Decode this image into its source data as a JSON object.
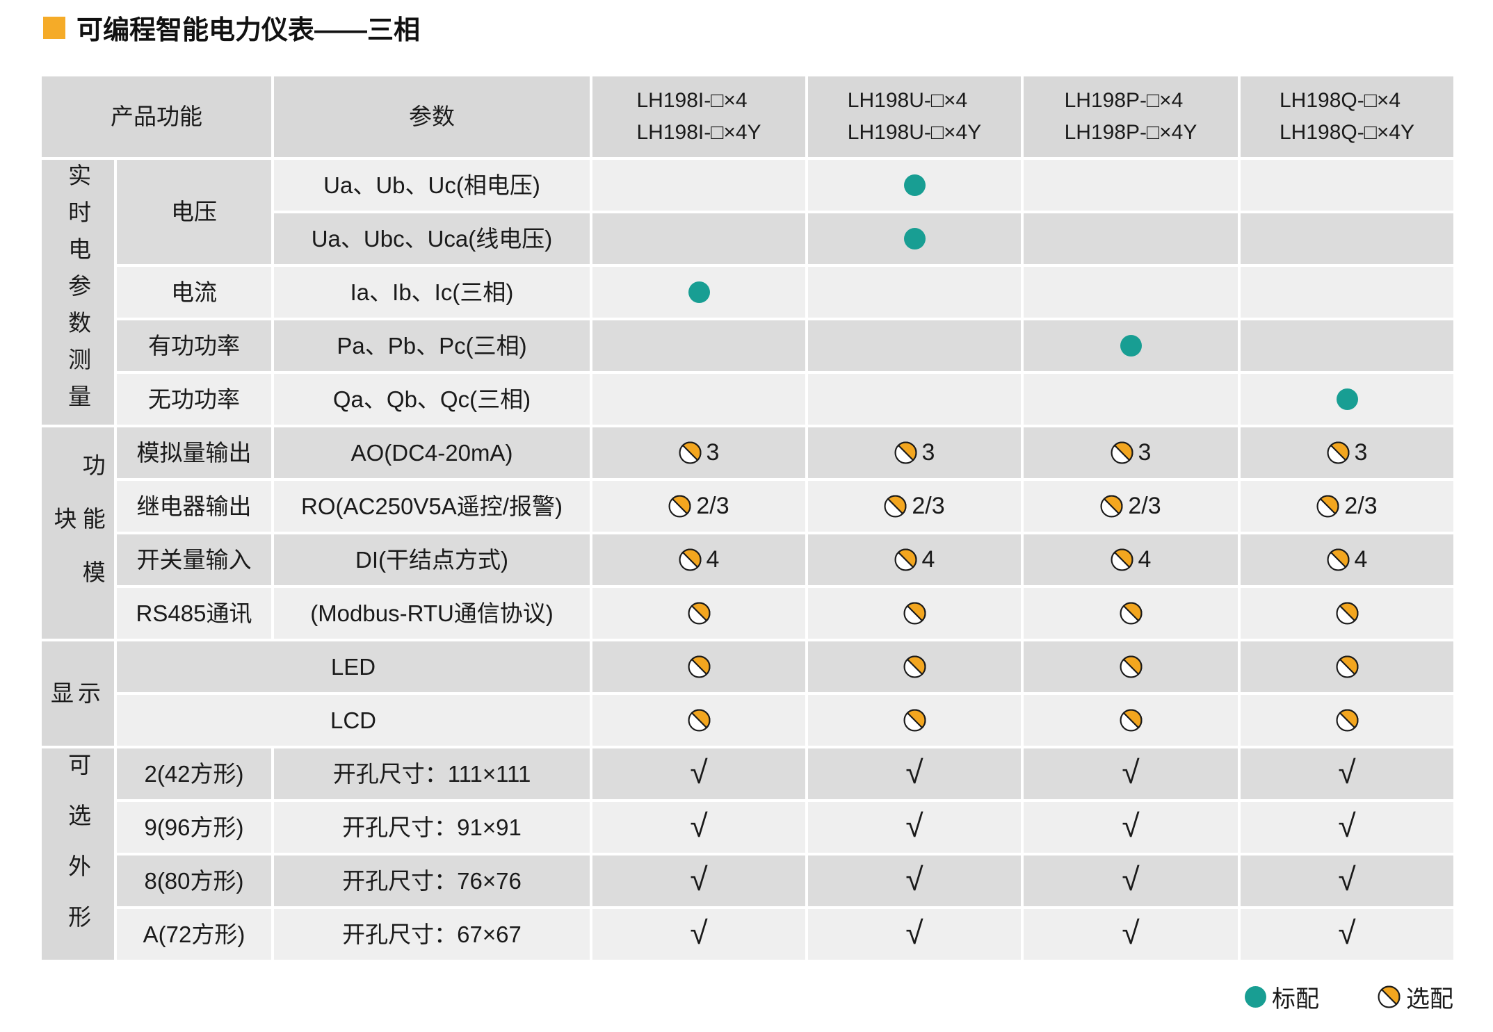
{
  "title": {
    "text": "可编程智能电力仪表——三相"
  },
  "colors": {
    "teal": "#189e93",
    "orange": "#f3a61f",
    "title_square": "#f5ab28",
    "header_bg": "#d8d8d8",
    "row_light": "#efefef",
    "row_dark": "#dcdcdc"
  },
  "legend": {
    "standard_label": "标配",
    "optional_label": "选配"
  },
  "table": {
    "headers": {
      "product_function": "产品功能",
      "parameter": "参数",
      "models": [
        [
          "LH198I-□×4",
          "LH198I-□×4Y"
        ],
        [
          "LH198U-□×4",
          "LH198U-□×4Y"
        ],
        [
          "LH198P-□×4",
          "LH198P-□×4Y"
        ],
        [
          "LH198Q-□×4",
          "LH198Q-□×4Y"
        ]
      ]
    },
    "cell_legend": {
      "std": "标配",
      "opt": "选配",
      "check": "√",
      "": ""
    },
    "sections": [
      {
        "label": "实时电参数测量",
        "vertical": true,
        "spacing": "ls-tight",
        "rows": [
          {
            "function": "电压",
            "function_rowspan": 2,
            "parameter": "Ua、Ub、Uc(相电压)",
            "cells": [
              "",
              "std",
              "",
              ""
            ]
          },
          {
            "parameter": "Ua、Ubc、Uca(线电压)",
            "cells": [
              "",
              "std",
              "",
              ""
            ]
          },
          {
            "function": "电流",
            "parameter": "Ia、Ib、Ic(三相)",
            "cells": [
              "std",
              "",
              "",
              ""
            ]
          },
          {
            "function": "有功功率",
            "parameter": "Pa、Pb、Pc(三相)",
            "cells": [
              "",
              "",
              "std",
              ""
            ]
          },
          {
            "function": "无功功率",
            "parameter": "Qa、Qb、Qc(三相)",
            "cells": [
              "",
              "",
              "",
              "std"
            ]
          }
        ]
      },
      {
        "label": "功能模块",
        "vertical": true,
        "spacing": "ls-wide",
        "rows": [
          {
            "function": "模拟量输出",
            "parameter": "AO(DC4-20mA)",
            "cells": [
              "opt:3",
              "opt:3",
              "opt:3",
              "opt:3"
            ]
          },
          {
            "function": "继电器输出",
            "parameter": "RO(AC250V5A遥控/报警)",
            "cells": [
              "opt:2/3",
              "opt:2/3",
              "opt:2/3",
              "opt:2/3"
            ]
          },
          {
            "function": "开关量输入",
            "parameter": "DI(干结点方式)",
            "cells": [
              "opt:4",
              "opt:4",
              "opt:4",
              "opt:4"
            ]
          },
          {
            "function": "RS485通讯",
            "parameter": "(Modbus-RTU通信协议)",
            "cells": [
              "opt",
              "opt",
              "opt",
              "opt"
            ]
          }
        ]
      },
      {
        "label": "显示",
        "vertical": false,
        "spacing": "hlabel",
        "rows": [
          {
            "parameter": "LED",
            "parameter_merged": true,
            "cells": [
              "opt",
              "opt",
              "opt",
              "opt"
            ]
          },
          {
            "parameter": "LCD",
            "parameter_merged": true,
            "cells": [
              "opt",
              "opt",
              "opt",
              "opt"
            ]
          }
        ]
      },
      {
        "label": "可选外形",
        "vertical": true,
        "spacing": "ls-wide2",
        "rows": [
          {
            "function": "2(42方形)",
            "parameter": "开孔尺寸：111×111",
            "cells": [
              "check",
              "check",
              "check",
              "check"
            ]
          },
          {
            "function": "9(96方形)",
            "parameter": "开孔尺寸：91×91",
            "cells": [
              "check",
              "check",
              "check",
              "check"
            ]
          },
          {
            "function": "8(80方形)",
            "parameter": "开孔尺寸：76×76",
            "cells": [
              "check",
              "check",
              "check",
              "check"
            ]
          },
          {
            "function": "A(72方形)",
            "parameter": "开孔尺寸：67×67",
            "cells": [
              "check",
              "check",
              "check",
              "check"
            ]
          }
        ]
      }
    ]
  }
}
